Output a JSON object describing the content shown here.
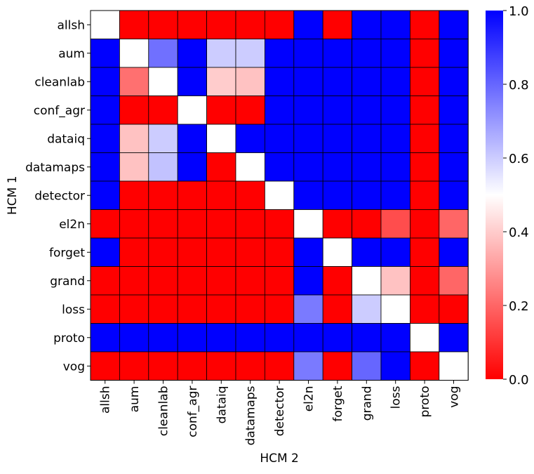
{
  "chart_data": {
    "type": "heatmap",
    "title": "",
    "xlabel": "HCM 2",
    "ylabel": "HCM 1",
    "rows": [
      "allsh",
      "aum",
      "cleanlab",
      "conf_agr",
      "dataiq",
      "datamaps",
      "detector",
      "el2n",
      "forget",
      "grand",
      "loss",
      "proto",
      "vog"
    ],
    "cols": [
      "allsh",
      "aum",
      "cleanlab",
      "conf_agr",
      "dataiq",
      "datamaps",
      "detector",
      "el2n",
      "forget",
      "grand",
      "loss",
      "proto",
      "vog"
    ],
    "values": [
      [
        0.5,
        0.0,
        0.0,
        0.0,
        0.0,
        0.0,
        0.0,
        1.0,
        0.0,
        1.0,
        1.0,
        0.0,
        1.0
      ],
      [
        1.0,
        0.5,
        0.78,
        1.0,
        0.6,
        0.6,
        1.0,
        1.0,
        1.0,
        1.0,
        1.0,
        0.0,
        1.0
      ],
      [
        1.0,
        0.22,
        0.5,
        1.0,
        0.4,
        0.38,
        1.0,
        1.0,
        1.0,
        1.0,
        1.0,
        0.0,
        1.0
      ],
      [
        1.0,
        0.0,
        0.0,
        0.5,
        0.0,
        0.0,
        1.0,
        1.0,
        1.0,
        1.0,
        1.0,
        0.0,
        1.0
      ],
      [
        1.0,
        0.38,
        0.6,
        1.0,
        0.5,
        1.0,
        1.0,
        1.0,
        1.0,
        1.0,
        1.0,
        0.0,
        1.0
      ],
      [
        1.0,
        0.38,
        0.62,
        1.0,
        0.0,
        0.5,
        1.0,
        1.0,
        1.0,
        1.0,
        1.0,
        0.0,
        1.0
      ],
      [
        1.0,
        0.0,
        0.0,
        0.0,
        0.0,
        0.0,
        0.5,
        1.0,
        1.0,
        1.0,
        1.0,
        0.0,
        1.0
      ],
      [
        0.0,
        0.0,
        0.0,
        0.0,
        0.0,
        0.0,
        0.0,
        0.5,
        0.0,
        0.0,
        0.15,
        0.0,
        0.2
      ],
      [
        1.0,
        0.0,
        0.0,
        0.0,
        0.0,
        0.0,
        0.0,
        1.0,
        0.5,
        1.0,
        1.0,
        0.0,
        1.0
      ],
      [
        0.0,
        0.0,
        0.0,
        0.0,
        0.0,
        0.0,
        0.0,
        1.0,
        0.0,
        0.5,
        0.38,
        0.0,
        0.2
      ],
      [
        0.0,
        0.0,
        0.0,
        0.0,
        0.0,
        0.0,
        0.0,
        0.76,
        0.0,
        0.6,
        0.5,
        0.0,
        0.0
      ],
      [
        1.0,
        1.0,
        1.0,
        1.0,
        1.0,
        1.0,
        1.0,
        1.0,
        1.0,
        1.0,
        1.0,
        0.5,
        1.0
      ],
      [
        0.0,
        0.0,
        0.0,
        0.0,
        0.0,
        0.0,
        0.0,
        0.76,
        0.0,
        0.8,
        1.0,
        0.0,
        0.5
      ]
    ],
    "colorbar": {
      "range": [
        0.0,
        1.0
      ],
      "ticks": [
        0.0,
        0.2,
        0.4,
        0.6,
        0.8,
        1.0
      ],
      "tick_labels": [
        "0.0",
        "0.2",
        "0.4",
        "0.6",
        "0.8",
        "1.0"
      ]
    },
    "colormap": {
      "low": "#ff0000",
      "mid": "#ffffff",
      "high": "#0000ff"
    },
    "grid": false,
    "legend": "colorbar-right"
  }
}
